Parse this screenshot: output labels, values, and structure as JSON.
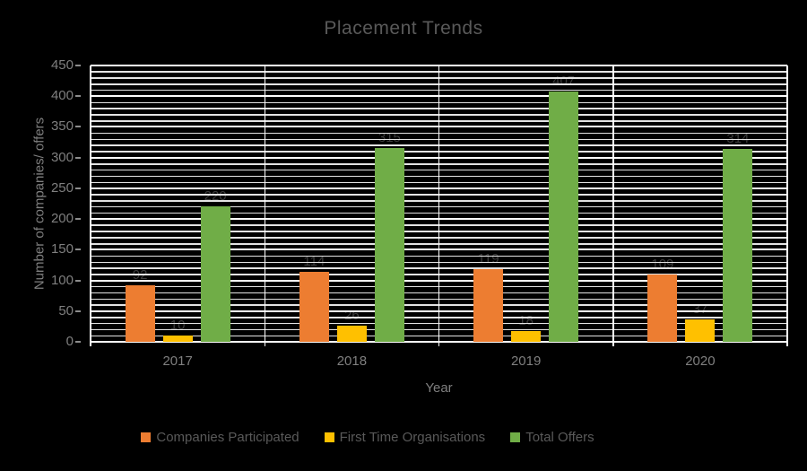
{
  "chart_data": {
    "type": "bar",
    "title": "Placement Trends",
    "xlabel": "Year",
    "ylabel": "Number of companies/ offers",
    "categories": [
      "2017",
      "2018",
      "2019",
      "2020"
    ],
    "series": [
      {
        "name": "Companies Participated",
        "color": "#ED7D31",
        "values": [
          92,
          114,
          119,
          109
        ]
      },
      {
        "name": "First Time Organisations",
        "color": "#FFC000",
        "values": [
          10,
          26,
          18,
          37
        ]
      },
      {
        "name": "Total Offers",
        "color": "#70AD47",
        "values": [
          220,
          315,
          407,
          314
        ]
      }
    ],
    "ylim": [
      0,
      450
    ],
    "y_major_step": 50,
    "y_minor_step": 10,
    "y_ticks": [
      "0",
      "50",
      "100",
      "150",
      "200",
      "250",
      "300",
      "350",
      "400",
      "450"
    ],
    "grid": true,
    "legend_position": "bottom"
  },
  "colors": {
    "background": "#000000",
    "gridline_major": "#ffffff",
    "gridline_minor": "#e3e3e3",
    "title_text": "#595959",
    "axis_text": "#7f7f7f",
    "data_label": "#3d3d3d",
    "tick_mark": "#8c8c8c"
  }
}
